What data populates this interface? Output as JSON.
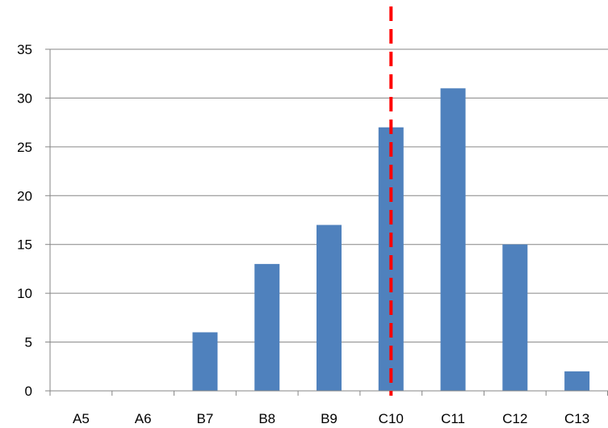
{
  "chart_data": {
    "type": "bar",
    "categories": [
      "A5",
      "A6",
      "B7",
      "B8",
      "B9",
      "C10",
      "C11",
      "C12",
      "C13"
    ],
    "values": [
      0,
      0,
      6,
      13,
      17,
      27,
      31,
      15,
      2
    ],
    "title": "",
    "xlabel": "",
    "ylabel": "",
    "ylim": [
      0,
      35
    ],
    "yticks": [
      0,
      5,
      10,
      15,
      20,
      25,
      30,
      35
    ],
    "grid": true,
    "legend": "none",
    "bar_color": "#4f81bd",
    "reference_line": {
      "category": "C10",
      "style": "dashed",
      "color": "#ff0000"
    }
  }
}
